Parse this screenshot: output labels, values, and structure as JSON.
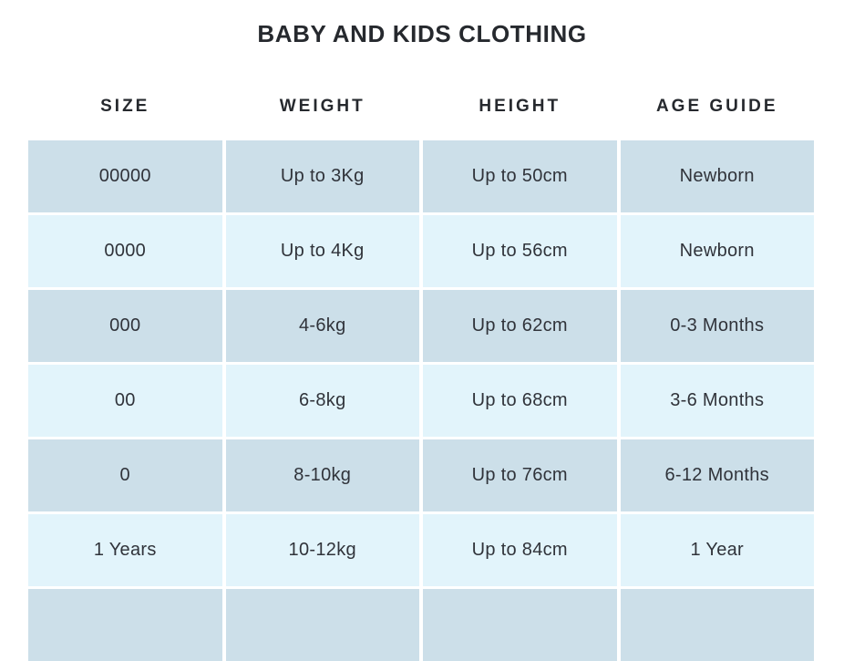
{
  "title": "BABY AND KIDS CLOTHING",
  "table": {
    "headers": [
      "SIZE",
      "WEIGHT",
      "HEIGHT",
      "AGE GUIDE"
    ],
    "rows": [
      [
        "00000",
        "Up to 3Kg",
        "Up to 50cm",
        "Newborn"
      ],
      [
        "0000",
        "Up to 4Kg",
        "Up to 56cm",
        "Newborn"
      ],
      [
        "000",
        "4-6kg",
        "Up to 62cm",
        "0-3 Months"
      ],
      [
        "00",
        "6-8kg",
        "Up to 68cm",
        "3-6 Months"
      ],
      [
        "0",
        "8-10kg",
        "Up to 76cm",
        "6-12 Months"
      ],
      [
        "1 Years",
        "10-12kg",
        "Up to 84cm",
        "1 Year"
      ],
      [
        "",
        "",
        "",
        ""
      ]
    ]
  },
  "colors": {
    "row_dark": "#ccdfe9",
    "row_light": "#e2f4fb",
    "text": "#30333a",
    "heading": "#26292e"
  },
  "chart_data": {
    "type": "table",
    "title": "BABY AND KIDS CLOTHING",
    "columns": [
      "SIZE",
      "WEIGHT",
      "HEIGHT",
      "AGE GUIDE"
    ],
    "rows": [
      [
        "00000",
        "Up to 3Kg",
        "Up to 50cm",
        "Newborn"
      ],
      [
        "0000",
        "Up to 4Kg",
        "Up to 56cm",
        "Newborn"
      ],
      [
        "000",
        "4-6kg",
        "Up to 62cm",
        "0-3 Months"
      ],
      [
        "00",
        "6-8kg",
        "Up to 68cm",
        "3-6 Months"
      ],
      [
        "0",
        "8-10kg",
        "Up to 76cm",
        "6-12 Months"
      ],
      [
        "1 Years",
        "10-12kg",
        "Up to 84cm",
        "1 Year"
      ]
    ],
    "layout": "alternating row colors (steel blue / pale cyan), white gutters between cells, header row outside table, partial 7th row cut off at viewport bottom"
  }
}
